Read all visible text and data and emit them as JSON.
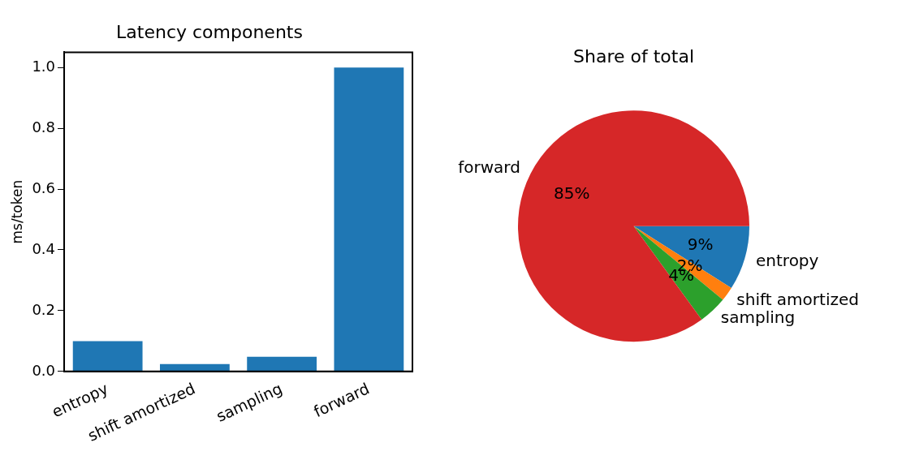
{
  "chart_data": [
    {
      "type": "bar",
      "title": "Latency components",
      "ylabel": "ms/token",
      "categories": [
        "entropy",
        "shift amortized",
        "sampling",
        "forward"
      ],
      "values": [
        0.1,
        0.024,
        0.048,
        1.0
      ],
      "color": "#1f77b4",
      "ylim": [
        0,
        1.05
      ],
      "yticks": [
        {
          "value": 0,
          "label": "0.0"
        },
        {
          "value": 0.2,
          "label": "0.2"
        },
        {
          "value": 0.4,
          "label": "0.4"
        },
        {
          "value": 0.6,
          "label": "0.6"
        },
        {
          "value": 0.8,
          "label": "0.8"
        },
        {
          "value": 1.0,
          "label": "1.0"
        }
      ],
      "grid": false,
      "legend": false
    },
    {
      "type": "pie",
      "title": "Share of total",
      "categories": [
        "entropy",
        "shift amortized",
        "sampling",
        "forward"
      ],
      "values": [
        9,
        2,
        4,
        85
      ],
      "colors": [
        "#1f77b4",
        "#ff7f0e",
        "#2ca02c",
        "#d62728"
      ],
      "value_labels": [
        "9%",
        "2%",
        "4%",
        "85%"
      ],
      "legend": false
    }
  ]
}
